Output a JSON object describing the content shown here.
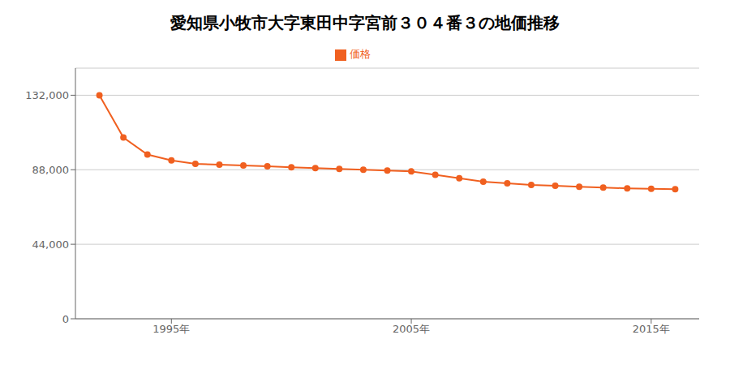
{
  "chart_data": {
    "type": "line",
    "title": "愛知県小牧市大字東田中字宮前３０４番３の地価推移",
    "x": [
      1992,
      1993,
      1994,
      1995,
      1996,
      1997,
      1998,
      1999,
      2000,
      2001,
      2002,
      2003,
      2004,
      2005,
      2006,
      2007,
      2008,
      2009,
      2010,
      2011,
      2012,
      2013,
      2014,
      2015,
      2016
    ],
    "series": [
      {
        "name": "価格",
        "color": "#f06020",
        "marker": "circle",
        "values": [
          132000,
          107000,
          97000,
          93500,
          91500,
          91000,
          90500,
          90000,
          89500,
          89000,
          88500,
          88000,
          87500,
          87000,
          85000,
          83000,
          81000,
          80000,
          79000,
          78500,
          78000,
          77500,
          77000,
          76800,
          76500
        ]
      }
    ],
    "xlim": [
      1991,
      2017
    ],
    "xticks": [
      {
        "value": 1995,
        "label": "1995年"
      },
      {
        "value": 2005,
        "label": "2005年"
      },
      {
        "value": 2015,
        "label": "2015年"
      }
    ],
    "ylim": [
      0,
      148000
    ],
    "yticks": [
      0,
      {
        "value": 44000,
        "label": "44,000"
      },
      {
        "value": 88000,
        "label": "88,000"
      },
      {
        "value": 132000,
        "label": "132,000"
      }
    ],
    "grid": "y",
    "legend": "top"
  }
}
